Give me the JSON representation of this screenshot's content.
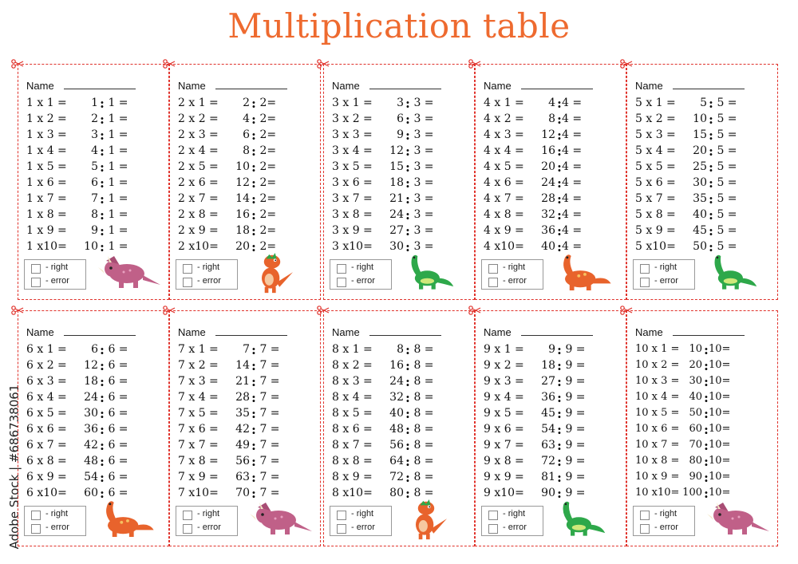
{
  "title": "Multiplication table",
  "watermark": "Adobe Stock | #686738061",
  "name_label": "Name",
  "check_right": "- right",
  "check_error": "- error",
  "tables": [
    {
      "n": 1,
      "dino": "triceratops",
      "mul": [
        "1 x 1 =",
        "1 x 2 =",
        "1 x 3 =",
        "1 x 4 =",
        "1 x 5 =",
        "1 x 6 =",
        "1 x 7 =",
        "1 x 8 =",
        "1 x 9 =",
        "1 x10="
      ],
      "div_nums": [
        "1",
        "2",
        "3",
        "4",
        "5",
        "6",
        "7",
        "8",
        "9",
        "10"
      ],
      "div_rest": " 1 ="
    },
    {
      "n": 2,
      "dino": "orange-raptor",
      "mul": [
        "2 x 1 =",
        "2 x 2 =",
        "2 x 3 =",
        "2 x 4 =",
        "2 x 5 =",
        "2 x 6 =",
        "2 x 7 =",
        "2 x 8 =",
        "2 x 9 =",
        "2 x10="
      ],
      "div_nums": [
        "2",
        "4",
        "6",
        "8",
        "10",
        "12",
        "14",
        "16",
        "18",
        "20"
      ],
      "div_rest": " 2="
    },
    {
      "n": 3,
      "dino": "green-sauropod",
      "mul": [
        "3 x 1 =",
        "3 x 2 =",
        "3 x 3 =",
        "3 x 4 =",
        "3 x 5 =",
        "3 x 6 =",
        "3 x 7 =",
        "3 x 8 =",
        "3 x 9 =",
        "3 x10="
      ],
      "div_nums": [
        "3",
        "6",
        "9",
        "12",
        "15",
        "18",
        "21",
        "24",
        "27",
        "30"
      ],
      "div_rest": " 3 ="
    },
    {
      "n": 4,
      "dino": "orange-sauropod",
      "mul": [
        "4 x 1 =",
        "4 x 2 =",
        "4 x 3 =",
        "4 x 4 =",
        "4 x 5 =",
        "4 x 6 =",
        "4 x 7 =",
        "4 x 8 =",
        "4 x 9 =",
        "4 x10="
      ],
      "div_nums": [
        "4",
        "8",
        "12",
        "16",
        "20",
        "24",
        "28",
        "32",
        "36",
        "40"
      ],
      "div_rest": "4 ="
    },
    {
      "n": 5,
      "dino": "green-sauropod",
      "mul": [
        "5 x 1 =",
        "5 x 2 =",
        "5 x 3 =",
        "5 x 4 =",
        "5 x 5 =",
        "5 x 6 =",
        "5 x 7 =",
        "5 x 8 =",
        "5 x 9 =",
        "5 x10="
      ],
      "div_nums": [
        "5",
        "10",
        "15",
        "20",
        "25",
        "30",
        "35",
        "40",
        "45",
        "50"
      ],
      "div_rest": " 5 ="
    },
    {
      "n": 6,
      "dino": "orange-sauropod",
      "mul": [
        "6 x 1 =",
        "6 x 2 =",
        "6 x 3 =",
        "6 x 4 =",
        "6 x 5 =",
        "6 x 6 =",
        "6 x 7 =",
        "6 x 8 =",
        "6 x 9 =",
        "6 x10="
      ],
      "div_nums": [
        "6",
        "12",
        "18",
        "24",
        "30",
        "36",
        "42",
        "48",
        "54",
        "60"
      ],
      "div_rest": " 6 ="
    },
    {
      "n": 7,
      "dino": "triceratops",
      "mul": [
        "7 x 1 =",
        "7 x 2 =",
        "7 x 3 =",
        "7 x 4 =",
        "7 x 5 =",
        "7 x 6 =",
        "7 x 7 =",
        "7 x 8 =",
        "7 x 9 =",
        "7 x10="
      ],
      "div_nums": [
        "7",
        "14",
        "21",
        "28",
        "35",
        "42",
        "49",
        "56",
        "63",
        "70"
      ],
      "div_rest": " 7 ="
    },
    {
      "n": 8,
      "dino": "orange-raptor",
      "mul": [
        "8 x 1 =",
        "8 x 2 =",
        "8 x 3 =",
        "8 x 4 =",
        "8 x 5 =",
        "8 x 6 =",
        "8 x 7 =",
        "8 x 8 =",
        "8 x 9 =",
        "8 x10="
      ],
      "div_nums": [
        "8",
        "16",
        "24",
        "32",
        "40",
        "48",
        "56",
        "64",
        "72",
        "80"
      ],
      "div_rest": " 8 ="
    },
    {
      "n": 9,
      "dino": "green-sauropod",
      "mul": [
        "9 x 1 =",
        "9 x 2 =",
        "9 x 3 =",
        "9 x 4 =",
        "9 x 5 =",
        "9 x 6 =",
        "9 x 7 =",
        "9 x 8 =",
        "9 x 9 =",
        "9 x10="
      ],
      "div_nums": [
        "9",
        "18",
        "27",
        "36",
        "45",
        "54",
        "63",
        "72",
        "81",
        "90"
      ],
      "div_rest": " 9 ="
    },
    {
      "n": 10,
      "dino": "triceratops",
      "mul": [
        "10 x 1 =",
        "10 x 2 =",
        "10 x 3 =",
        "10 x 4 =",
        "10 x 5 =",
        "10 x 6 =",
        "10 x 7 =",
        "10 x 8 =",
        "10 x 9 =",
        "10 x10="
      ],
      "div_nums": [
        "10",
        "20",
        "30",
        "40",
        "50",
        "60",
        "70",
        "80",
        "90",
        "100"
      ],
      "div_rest": "10="
    }
  ],
  "colors": {
    "title": "#ee6a2f",
    "cut_line": "#e0322b",
    "triceratops": "#c06088",
    "orange": "#e8632c",
    "green": "#2ea84a"
  }
}
